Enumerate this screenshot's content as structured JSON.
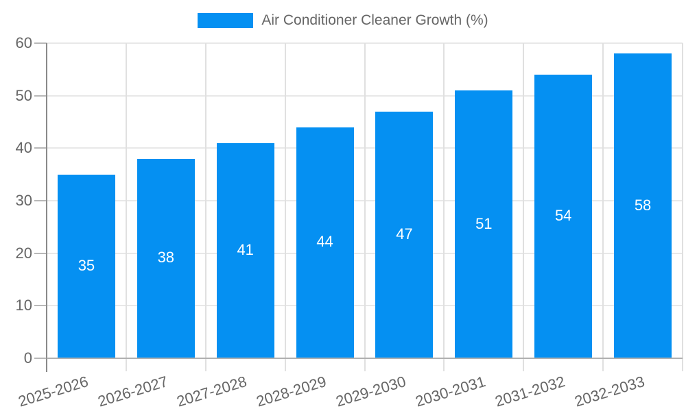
{
  "legend": {
    "label": "Air Conditioner Cleaner Growth (%)"
  },
  "chart_data": {
    "type": "bar",
    "title": "Air Conditioner Cleaner Growth (%)",
    "categories": [
      "2025-2026",
      "2026-2027",
      "2027-2028",
      "2028-2029",
      "2029-2030",
      "2030-2031",
      "2031-2032",
      "2032-2033"
    ],
    "values": [
      35,
      38,
      41,
      44,
      47,
      51,
      54,
      58
    ],
    "series": [
      {
        "name": "Air Conditioner Cleaner Growth (%)",
        "values": [
          35,
          38,
          41,
          44,
          47,
          51,
          54,
          58
        ]
      }
    ],
    "xlabel": "",
    "ylabel": "",
    "ylim": [
      0,
      60
    ],
    "y_ticks": [
      0,
      10,
      20,
      30,
      40,
      50,
      60
    ],
    "grid": true,
    "legend_position": "top",
    "x_tick_rotation_deg": -17,
    "value_label_position": "inside-center",
    "colors": {
      "bar": "#0590f2",
      "axis_text": "#666666",
      "value_label": "#ffffff",
      "grid_h": "#e8e8e8",
      "grid_v": "#e0e0e0",
      "y_axis_line": "#8a8a8a",
      "x_axis_line": "#b0b0b0",
      "tick": "#b8b8b8",
      "background": "#ffffff"
    }
  }
}
